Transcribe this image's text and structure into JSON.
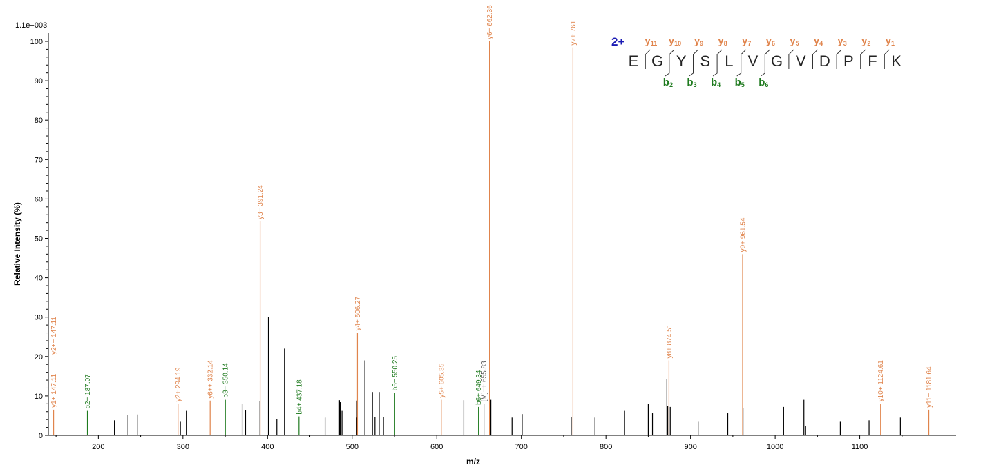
{
  "colors": {
    "y_ion": "#e0844c",
    "b_ion": "#1e7a1e",
    "other": "#000000",
    "axis": "#000000",
    "charge": "#1a1ab4"
  },
  "chart_data": {
    "type": "bar",
    "scale_label": "1.1e+003",
    "xlabel": "m/z",
    "ylabel": "Relative   Intensity (%)",
    "xlim": [
      145,
      1182
    ],
    "ylim": [
      0,
      100
    ],
    "x_ticks": [
      200,
      300,
      400,
      500,
      600,
      700,
      800,
      900,
      1000,
      1100
    ],
    "y_ticks": [
      0,
      10,
      20,
      30,
      40,
      50,
      60,
      70,
      80,
      90,
      100
    ],
    "labeled_peaks": [
      {
        "mz": 147.11,
        "intensity": 6.5,
        "type": "y",
        "label": "y1+ 147.11"
      },
      {
        "mz": 147.11,
        "intensity": 6.5,
        "type": "y",
        "label": "y2++ 147.11",
        "stack": 1
      },
      {
        "mz": 187.07,
        "intensity": 6.2,
        "type": "b",
        "label": "b2+ 187.07"
      },
      {
        "mz": 294.19,
        "intensity": 8.0,
        "type": "y",
        "label": "y2+ 294.19"
      },
      {
        "mz": 332.14,
        "intensity": 8.8,
        "type": "y",
        "label": "y6++ 332.14"
      },
      {
        "mz": 350.14,
        "intensity": 9.0,
        "type": "b",
        "label": "b3+ 350.14"
      },
      {
        "mz": 391.24,
        "intensity": 54.3,
        "type": "y",
        "label": "y3+ 391.24"
      },
      {
        "mz": 437.18,
        "intensity": 4.8,
        "type": "b",
        "label": "b4+ 437.18"
      },
      {
        "mz": 506.27,
        "intensity": 26.0,
        "type": "y",
        "label": "y4+ 506.27"
      },
      {
        "mz": 550.25,
        "intensity": 10.8,
        "type": "b",
        "label": "b5+ 550.25"
      },
      {
        "mz": 605.35,
        "intensity": 9.0,
        "type": "y",
        "label": "y5+ 605.35"
      },
      {
        "mz": 649.34,
        "intensity": 7.2,
        "type": "b",
        "label": "b6+ 649.34"
      },
      {
        "mz": 655.83,
        "intensity": 8.0,
        "type": "other",
        "label": "[M]++ 655.83"
      },
      {
        "mz": 662.36,
        "intensity": 100.0,
        "type": "y",
        "label": "y6+ 662.36"
      },
      {
        "mz": 761,
        "intensity": 98.5,
        "type": "y",
        "label": "y7+ 761"
      },
      {
        "mz": 874.51,
        "intensity": 19.0,
        "type": "y",
        "label": "y8+ 874.51"
      },
      {
        "mz": 961.54,
        "intensity": 46.0,
        "type": "y",
        "label": "y9+ 961.54"
      },
      {
        "mz": 1124.61,
        "intensity": 8.0,
        "type": "y",
        "label": "y10+ 1124.61"
      },
      {
        "mz": 1181.64,
        "intensity": 6.5,
        "type": "y",
        "label": "y11+ 1181.64"
      }
    ],
    "unlabeled_peaks": [
      [
        219,
        3.8
      ],
      [
        235,
        5.2
      ],
      [
        246,
        5.3
      ],
      [
        297,
        3.6
      ],
      [
        304,
        6.2
      ],
      [
        370,
        8.0
      ],
      [
        374,
        6.3
      ],
      [
        391,
        8.7
      ],
      [
        401,
        30.0
      ],
      [
        411,
        4.2
      ],
      [
        420,
        22.0
      ],
      [
        468,
        4.5
      ],
      [
        485,
        8.9
      ],
      [
        486,
        8.4
      ],
      [
        488,
        6.2
      ],
      [
        505,
        8.8
      ],
      [
        506,
        4.5
      ],
      [
        515,
        19.0
      ],
      [
        524,
        11.0
      ],
      [
        527,
        4.6
      ],
      [
        532,
        11.0
      ],
      [
        537,
        4.6
      ],
      [
        632,
        8.9
      ],
      [
        664,
        9.0
      ],
      [
        689,
        4.5
      ],
      [
        701,
        5.4
      ],
      [
        759,
        4.6
      ],
      [
        787,
        4.5
      ],
      [
        822,
        6.2
      ],
      [
        850,
        8.0
      ],
      [
        855,
        5.6
      ],
      [
        872,
        14.3
      ],
      [
        873,
        7.4
      ],
      [
        876,
        7.2
      ],
      [
        909,
        3.6
      ],
      [
        944,
        5.6
      ],
      [
        962,
        7.0
      ],
      [
        1010,
        7.2
      ],
      [
        1034,
        9.0
      ],
      [
        1036,
        2.4
      ],
      [
        1077,
        3.6
      ],
      [
        1111,
        3.8
      ],
      [
        1148,
        4.5
      ]
    ],
    "annotation": {
      "charge": "2+",
      "sequence": [
        "E",
        "G",
        "Y",
        "S",
        "L",
        "V",
        "G",
        "V",
        "D",
        "P",
        "F",
        "K"
      ],
      "y_ions": [
        {
          "main": "y",
          "sub": "11"
        },
        {
          "main": "y",
          "sub": "10"
        },
        {
          "main": "y",
          "sub": "9"
        },
        {
          "main": "y",
          "sub": "8"
        },
        {
          "main": "y",
          "sub": "7"
        },
        {
          "main": "y",
          "sub": "6"
        },
        {
          "main": "y",
          "sub": "5"
        },
        {
          "main": "y",
          "sub": "4"
        },
        {
          "main": "y",
          "sub": "3"
        },
        {
          "main": "y",
          "sub": "2"
        },
        {
          "main": "y",
          "sub": "1"
        }
      ],
      "b_ions": [
        {
          "main": "b",
          "sub": "2"
        },
        {
          "main": "b",
          "sub": "3"
        },
        {
          "main": "b",
          "sub": "4"
        },
        {
          "main": "b",
          "sub": "5"
        },
        {
          "main": "b",
          "sub": "6"
        }
      ]
    }
  }
}
